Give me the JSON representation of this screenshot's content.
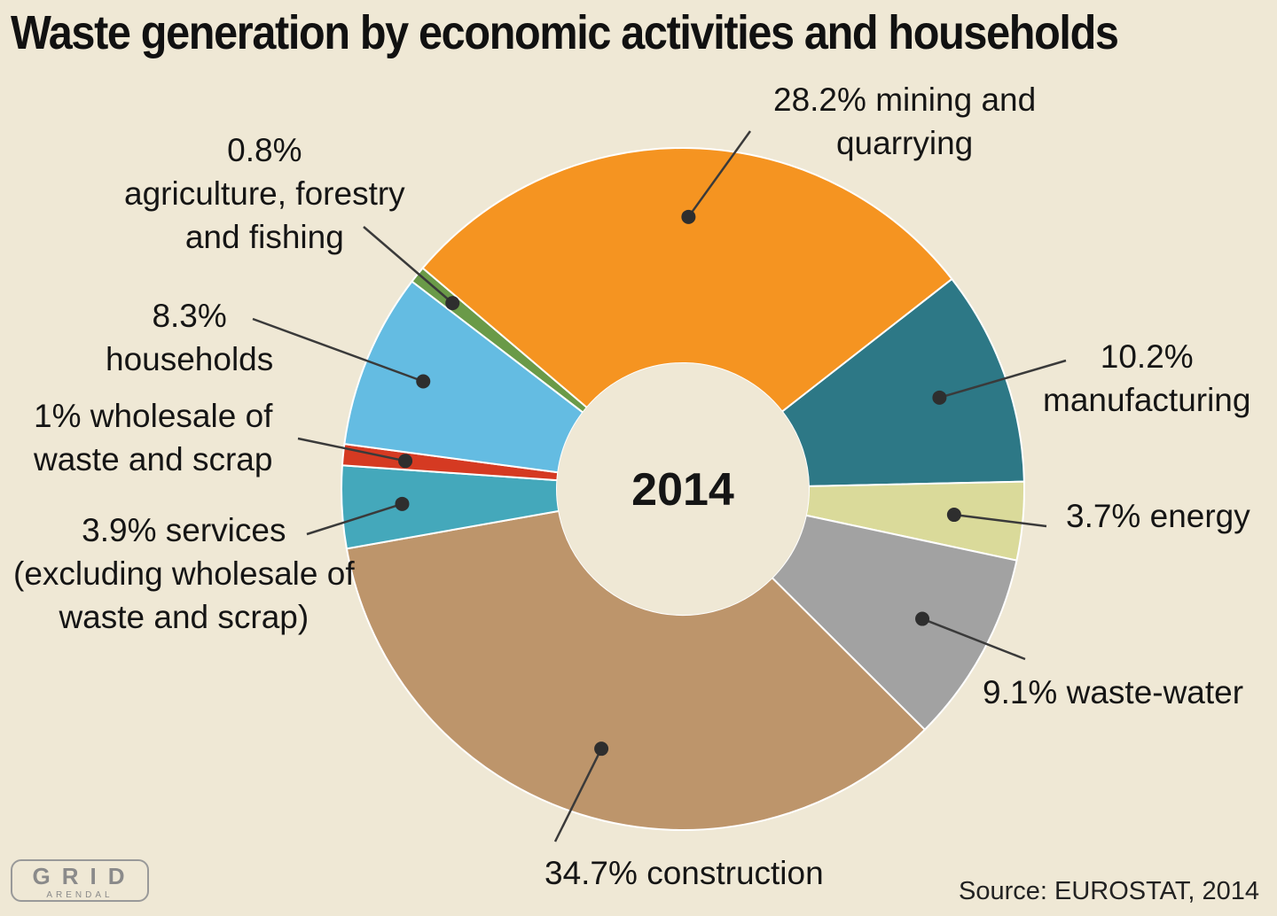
{
  "chart_data": {
    "type": "pie",
    "title": "Waste generation by economic activities and households",
    "center_label": "2014",
    "source": "Source: EUROSTAT, 2014",
    "slices": [
      {
        "key": "manufacturing",
        "value": 10.2,
        "color": "#2d7886",
        "label_lines": [
          "10.2%",
          "manufacturing"
        ]
      },
      {
        "key": "energy",
        "value": 3.7,
        "color": "#dada9a",
        "label_lines": [
          "3.7% energy"
        ]
      },
      {
        "key": "waste-water",
        "value": 9.1,
        "color": "#a2a2a2",
        "label_lines": [
          "9.1% waste-water"
        ]
      },
      {
        "key": "construction",
        "value": 34.7,
        "color": "#bd956b",
        "label_lines": [
          "34.7% construction"
        ]
      },
      {
        "key": "services",
        "value": 3.9,
        "color": "#44a8bb",
        "label_lines": [
          "3.9% services",
          "(excluding wholesale of",
          "waste and scrap)"
        ]
      },
      {
        "key": "wholesale",
        "value": 1,
        "color": "#d53a22",
        "label_lines": [
          "1% wholesale of",
          "waste and scrap"
        ]
      },
      {
        "key": "households",
        "value": 8.3,
        "color": "#64bce2",
        "label_lines": [
          "8.3%",
          "households"
        ]
      },
      {
        "key": "agriculture",
        "value": 0.8,
        "color": "#6a9a48",
        "label_lines": [
          "0.8%",
          "agriculture, forestry",
          "and fishing"
        ]
      },
      {
        "key": "mining",
        "value": 28.2,
        "color": "#f59421",
        "label_lines": [
          "28.2% mining and",
          "quarrying"
        ]
      }
    ]
  },
  "logo": {
    "word": "GRID",
    "sub": "ARENDAL"
  }
}
